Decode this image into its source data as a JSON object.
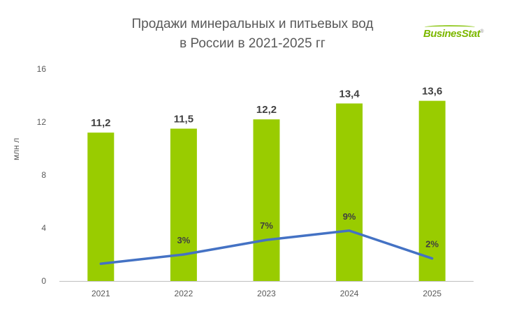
{
  "header": {
    "title_line1": "Продажи минеральных и питьевых вод",
    "title_line2": "в России в 2021-2025 гг",
    "logo_text": "BusinesStat",
    "logo_mark": "®"
  },
  "chart_data": {
    "type": "bar",
    "title": "Продажи минеральных и питьевых вод в России в 2021-2025 гг",
    "ylabel": "млн  л",
    "xlabel": "",
    "categories": [
      "2021",
      "2022",
      "2023",
      "2024",
      "2025"
    ],
    "ylim": [
      0,
      16
    ],
    "yticks": [
      0,
      4,
      8,
      12,
      16
    ],
    "grid": false,
    "series": [
      {
        "type": "bar",
        "values": [
          11.2,
          11.5,
          12.2,
          13.4,
          13.6
        ],
        "labels": [
          "11,2",
          "11,5",
          "12,2",
          "13,4",
          "13,6"
        ],
        "color": "#99cc00"
      },
      {
        "type": "line",
        "values_on_bar_axis": [
          1.3,
          2.0,
          3.1,
          3.8,
          1.7
        ],
        "growth_percent": [
          null,
          3,
          7,
          9,
          2
        ],
        "labels": [
          "",
          "3%",
          "7%",
          "9%",
          "2%"
        ],
        "color": "#4472c4"
      }
    ],
    "colors": {
      "text": "#595959",
      "value_label": "#404040",
      "axis": "#bfbfbf"
    }
  }
}
